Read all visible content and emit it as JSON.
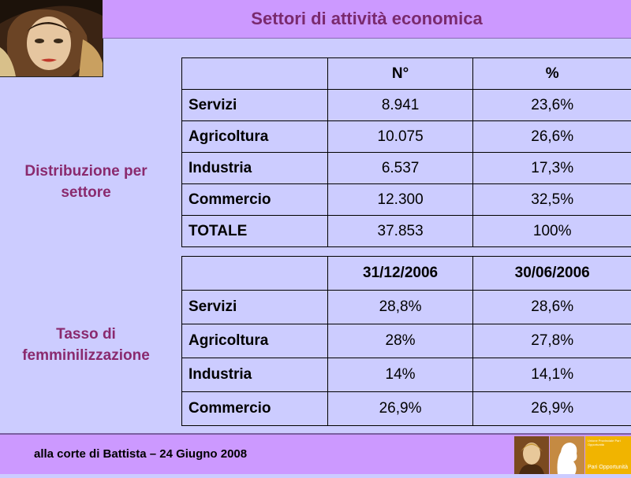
{
  "title": "Settori di attività economica",
  "side_labels": {
    "distribution_line1": "Distribuzione per",
    "distribution_line2": "settore",
    "rate_line1": "Tasso di",
    "rate_line2": "femminilizzazione"
  },
  "table1": {
    "headers": [
      "",
      "N°",
      "%"
    ],
    "rows": [
      {
        "label": "Servizi",
        "n": "8.941",
        "pct": "23,6%"
      },
      {
        "label": "Agricoltura",
        "n": "10.075",
        "pct": "26,6%"
      },
      {
        "label": "Industria",
        "n": "6.537",
        "pct": "17,3%"
      },
      {
        "label": "Commercio",
        "n": "12.300",
        "pct": "32,5%"
      },
      {
        "label": "TOTALE",
        "n": "37.853",
        "pct": "100%"
      }
    ]
  },
  "table2": {
    "headers": [
      "",
      "31/12/2006",
      "30/06/2006"
    ],
    "rows": [
      {
        "label": "Servizi",
        "d1": "28,8%",
        "d2": "28,6%"
      },
      {
        "label": "Agricoltura",
        "d1": "28%",
        "d2": "27,8%"
      },
      {
        "label": "Industria",
        "d1": "14%",
        "d2": "14,1%"
      },
      {
        "label": "Commercio",
        "d1": "26,9%",
        "d2": "26,9%"
      }
    ]
  },
  "footer": {
    "text": "alla corte di Battista – 24 Giugno 2008",
    "logo_line1": "Unione Provinciale Pari Opportunità",
    "logo_line2": "Pari Opportunità"
  }
}
